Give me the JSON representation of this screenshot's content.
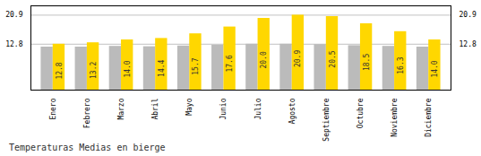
{
  "chart_data": {
    "type": "bar",
    "title": "Temperaturas Medias en bierge",
    "categories": [
      "Enero",
      "Febrero",
      "Marzo",
      "Abril",
      "Mayo",
      "Junio",
      "Julio",
      "Agosto",
      "Septiembre",
      "Octubre",
      "Noviembre",
      "Diciembre"
    ],
    "series": [
      {
        "color": "#BBBBBB",
        "values": [
          12.0,
          12.0,
          12.2,
          12.1,
          12.3,
          12.5,
          12.8,
          12.8,
          12.7,
          12.4,
          12.2,
          12.0
        ]
      },
      {
        "color": "#FFD700",
        "values": [
          12.8,
          13.2,
          14.0,
          14.4,
          15.7,
          17.6,
          20.0,
          20.9,
          20.5,
          18.5,
          16.3,
          14.0
        ],
        "value_labels": [
          "12.8",
          "13.2",
          "14.0",
          "14.4",
          "15.7",
          "17.6",
          "20.0",
          "20.9",
          "20.5",
          "18.5",
          "16.3",
          "14.0"
        ]
      }
    ],
    "data_labels": true,
    "ylim": [
      0,
      23.5
    ],
    "yticks": [
      12.8,
      20.9
    ],
    "grid": true
  }
}
